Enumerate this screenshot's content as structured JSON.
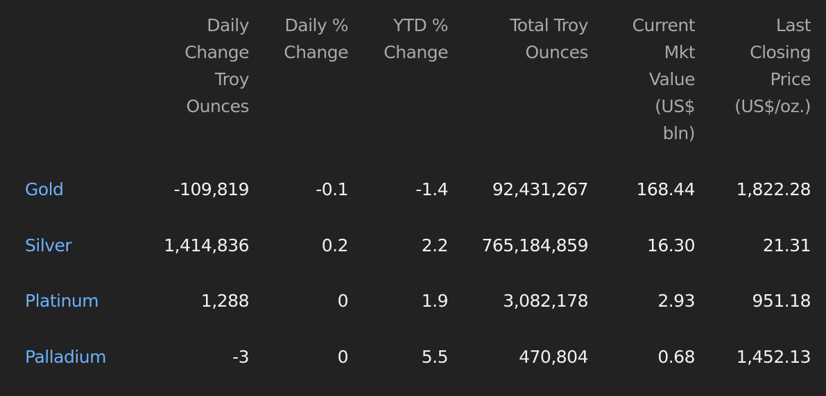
{
  "table": {
    "columns": [
      [
        "Daily",
        "Change",
        "Troy",
        "Ounces"
      ],
      [
        "Daily %",
        "Change"
      ],
      [
        "YTD %",
        "Change"
      ],
      [
        "Total Troy",
        "Ounces"
      ],
      [
        "Current",
        "Mkt",
        "Value",
        "(US$",
        "bln)"
      ],
      [
        "Last",
        "Closing",
        "Price",
        "(US$/oz.)"
      ]
    ],
    "rows": [
      [
        "Gold",
        "-109,819",
        "-0.1",
        "-1.4",
        "92,431,267",
        "168.44",
        "1,822.28"
      ],
      [
        "Silver",
        "1,414,836",
        "0.2",
        "2.2",
        "765,184,859",
        "16.30",
        "21.31"
      ],
      [
        "Platinum",
        "1,288",
        "0",
        "1.9",
        "3,082,178",
        "2.93",
        "951.18"
      ],
      [
        "Palladium",
        "-3",
        "0",
        "5.5",
        "470,804",
        "0.68",
        "1,452.13"
      ]
    ]
  }
}
